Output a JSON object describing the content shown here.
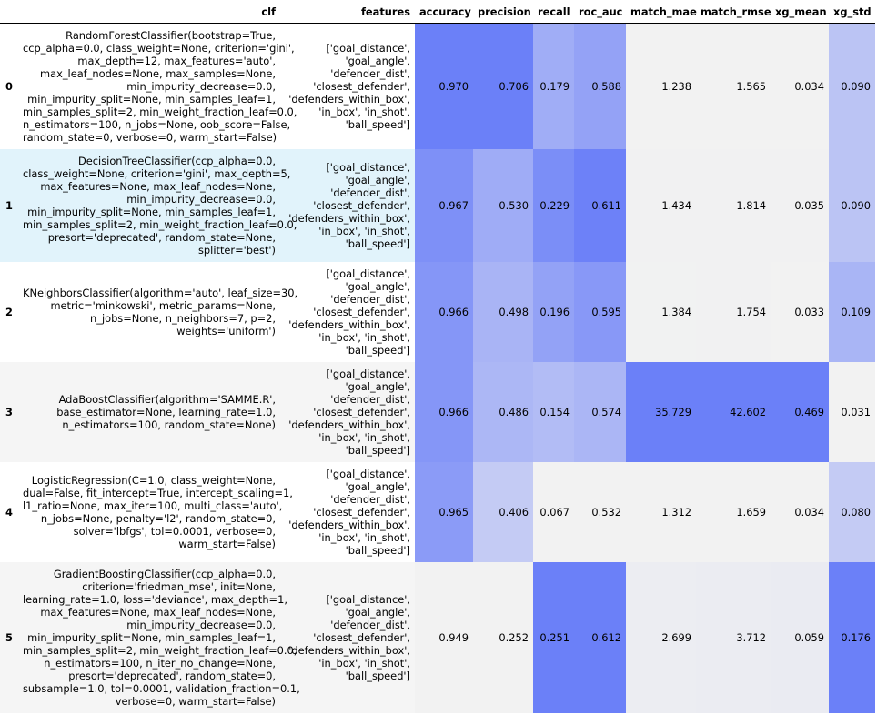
{
  "colors": {
    "row_alt": "#f5f5f5",
    "row_highlight": "#e1f3fb",
    "gradient_low": "#f2f2f2",
    "gradient_high": "#6b80f8"
  },
  "columns": [
    {
      "key": "index",
      "label": ""
    },
    {
      "key": "clf",
      "label": "clf"
    },
    {
      "key": "features",
      "label": "features"
    },
    {
      "key": "accuracy",
      "label": "accuracy"
    },
    {
      "key": "precision",
      "label": "precision"
    },
    {
      "key": "recall",
      "label": "recall"
    },
    {
      "key": "roc_auc",
      "label": "roc_auc"
    },
    {
      "key": "match_mae",
      "label": "match_mae"
    },
    {
      "key": "match_rmse",
      "label": "match_rmse"
    },
    {
      "key": "xg_mean",
      "label": "xg_mean"
    },
    {
      "key": "xg_std",
      "label": "xg_std"
    }
  ],
  "rows": [
    {
      "index": "0",
      "clf": [
        "RandomForestClassifier(bootstrap=True,",
        "ccp_alpha=0.0, class_weight=None, criterion='gini',",
        "max_depth=12, max_features='auto',",
        "max_leaf_nodes=None, max_samples=None,",
        "min_impurity_decrease=0.0,",
        "min_impurity_split=None, min_samples_leaf=1,",
        "min_samples_split=2, min_weight_fraction_leaf=0.0,",
        "n_estimators=100, n_jobs=None, oob_score=False,",
        "random_state=0, verbose=0, warm_start=False)"
      ],
      "features": [
        "['goal_distance',",
        "'goal_angle',",
        "'defender_dist',",
        "'closest_defender',",
        "'defenders_within_box',",
        "'in_box', 'in_shot',",
        "'ball_speed']"
      ],
      "accuracy": "0.970",
      "precision": "0.706",
      "recall": "0.179",
      "roc_auc": "0.588",
      "match_mae": "1.238",
      "match_rmse": "1.565",
      "xg_mean": "0.034",
      "xg_std": "0.090"
    },
    {
      "index": "1",
      "clf": [
        "DecisionTreeClassifier(ccp_alpha=0.0,",
        "class_weight=None, criterion='gini', max_depth=5,",
        "max_features=None, max_leaf_nodes=None,",
        "min_impurity_decrease=0.0,",
        "min_impurity_split=None, min_samples_leaf=1,",
        "min_samples_split=2, min_weight_fraction_leaf=0.0,",
        "presort='deprecated', random_state=None,",
        "splitter='best')"
      ],
      "features": [
        "['goal_distance',",
        "'goal_angle',",
        "'defender_dist',",
        "'closest_defender',",
        "'defenders_within_box',",
        "'in_box', 'in_shot',",
        "'ball_speed']"
      ],
      "accuracy": "0.967",
      "precision": "0.530",
      "recall": "0.229",
      "roc_auc": "0.611",
      "match_mae": "1.434",
      "match_rmse": "1.814",
      "xg_mean": "0.035",
      "xg_std": "0.090"
    },
    {
      "index": "2",
      "clf": [
        "KNeighborsClassifier(algorithm='auto', leaf_size=30,",
        "metric='minkowski', metric_params=None,",
        "n_jobs=None, n_neighbors=7, p=2,",
        "weights='uniform')"
      ],
      "features": [
        "['goal_distance',",
        "'goal_angle',",
        "'defender_dist',",
        "'closest_defender',",
        "'defenders_within_box',",
        "'in_box', 'in_shot',",
        "'ball_speed']"
      ],
      "accuracy": "0.966",
      "precision": "0.498",
      "recall": "0.196",
      "roc_auc": "0.595",
      "match_mae": "1.384",
      "match_rmse": "1.754",
      "xg_mean": "0.033",
      "xg_std": "0.109"
    },
    {
      "index": "3",
      "clf": [
        "AdaBoostClassifier(algorithm='SAMME.R',",
        "base_estimator=None, learning_rate=1.0,",
        "n_estimators=100, random_state=None)"
      ],
      "features": [
        "['goal_distance',",
        "'goal_angle',",
        "'defender_dist',",
        "'closest_defender',",
        "'defenders_within_box',",
        "'in_box', 'in_shot',",
        "'ball_speed']"
      ],
      "accuracy": "0.966",
      "precision": "0.486",
      "recall": "0.154",
      "roc_auc": "0.574",
      "match_mae": "35.729",
      "match_rmse": "42.602",
      "xg_mean": "0.469",
      "xg_std": "0.031"
    },
    {
      "index": "4",
      "clf": [
        "LogisticRegression(C=1.0, class_weight=None,",
        "dual=False, fit_intercept=True, intercept_scaling=1,",
        "l1_ratio=None, max_iter=100, multi_class='auto',",
        "n_jobs=None, penalty='l2', random_state=0,",
        "solver='lbfgs', tol=0.0001, verbose=0,",
        "warm_start=False)"
      ],
      "features": [
        "['goal_distance',",
        "'goal_angle',",
        "'defender_dist',",
        "'closest_defender',",
        "'defenders_within_box',",
        "'in_box', 'in_shot',",
        "'ball_speed']"
      ],
      "accuracy": "0.965",
      "precision": "0.406",
      "recall": "0.067",
      "roc_auc": "0.532",
      "match_mae": "1.312",
      "match_rmse": "1.659",
      "xg_mean": "0.034",
      "xg_std": "0.080"
    },
    {
      "index": "5",
      "clf": [
        "GradientBoostingClassifier(ccp_alpha=0.0,",
        "criterion='friedman_mse', init=None,",
        "learning_rate=1.0, loss='deviance', max_depth=1,",
        "max_features=None, max_leaf_nodes=None,",
        "min_impurity_decrease=0.0,",
        "min_impurity_split=None, min_samples_leaf=1,",
        "min_samples_split=2, min_weight_fraction_leaf=0.0,",
        "n_estimators=100, n_iter_no_change=None,",
        "presort='deprecated', random_state=0,",
        "subsample=1.0, tol=0.0001, validation_fraction=0.1,",
        "verbose=0, warm_start=False)"
      ],
      "features": [
        "['goal_distance',",
        "'goal_angle',",
        "'defender_dist',",
        "'closest_defender',",
        "'defenders_within_box',",
        "'in_box', 'in_shot',",
        "'ball_speed']"
      ],
      "accuracy": "0.949",
      "precision": "0.252",
      "recall": "0.251",
      "roc_auc": "0.612",
      "match_mae": "2.699",
      "match_rmse": "3.712",
      "xg_mean": "0.059",
      "xg_std": "0.176"
    }
  ]
}
